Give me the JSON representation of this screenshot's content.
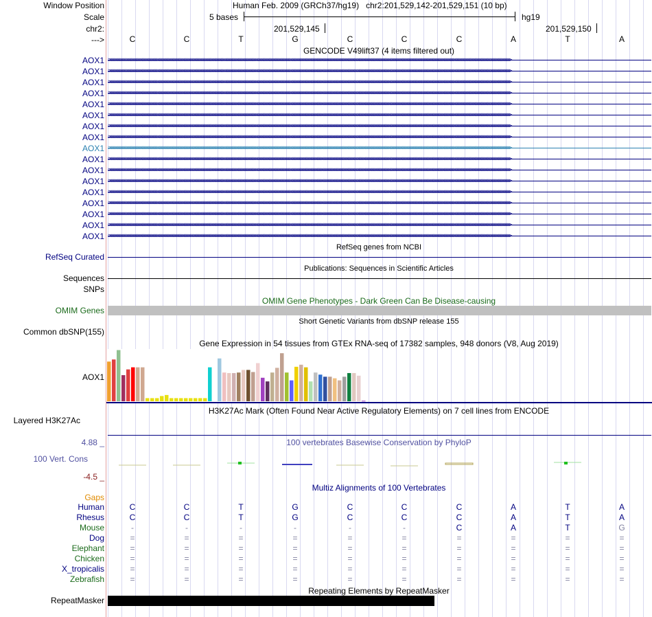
{
  "header": {
    "window_position_label": "Window Position",
    "assembly_text": "Human Feb. 2009 (GRCh37/hg19)",
    "position_text": "chr2:201,529,142-201,529,151 (10 bp)",
    "scale_label": "Scale",
    "scale_bar_text": "5 bases",
    "scale_db": "hg19",
    "chr_label": "chr2:",
    "coord_ticks": [
      "201,529,145",
      "201,529,150"
    ],
    "strand_label": "--->",
    "bases": [
      "C",
      "C",
      "T",
      "G",
      "C",
      "C",
      "C",
      "A",
      "T",
      "A"
    ]
  },
  "gencode": {
    "title": "GENCODE V49lift37 (4 items filtered out)",
    "rows": [
      "AOX1",
      "AOX1",
      "AOX1",
      "AOX1",
      "AOX1",
      "AOX1",
      "AOX1",
      "AOX1",
      "AOX1",
      "AOX1",
      "AOX1",
      "AOX1",
      "AOX1",
      "AOX1",
      "AOX1",
      "AOX1",
      "AOX1"
    ],
    "highlight_index": 8,
    "color": "#000080",
    "highlight_color": "#2a80b0"
  },
  "refseq": {
    "title": "RefSeq genes from NCBI",
    "label": "RefSeq Curated",
    "color": "#000080"
  },
  "publications": {
    "title": "Publications: Sequences in Scientific Articles",
    "sequences_label": "Sequences",
    "snps_label": "SNPs"
  },
  "omim": {
    "title": "OMIM Gene Phenotypes - Dark Green Can Be Disease-causing",
    "label": "OMIM Genes",
    "color": "#1a6a1a"
  },
  "dbsnp": {
    "title": "Short Genetic Variants from dbSNP release 155",
    "label": "Common dbSNP(155)"
  },
  "gtex": {
    "title": "Gene Expression in 54 tissues from GTEx RNA-seq of 17382 samples, 948 donors (V8, Aug 2019)",
    "label": "AOX1",
    "chart_data": {
      "type": "bar",
      "title": "Gene Expression in 54 tissues from GTEx RNA-seq of 17382 samples, 948 donors (V8, Aug 2019)",
      "ylim": [
        0,
        100
      ],
      "values": [
        76,
        80,
        98,
        50,
        61,
        65,
        65,
        65,
        6,
        6,
        6,
        10,
        12,
        6,
        6,
        6,
        6,
        6,
        6,
        6,
        6,
        65,
        4,
        82,
        55,
        54,
        54,
        55,
        60,
        60,
        56,
        73,
        45,
        38,
        55,
        64,
        92,
        55,
        40,
        66,
        70,
        65,
        38,
        55,
        51,
        47,
        47,
        44,
        40,
        47,
        54,
        54,
        49,
        1
      ],
      "colors": [
        "#f0a030",
        "#e04040",
        "#90c090",
        "#a03060",
        "#e04040",
        "#ff0000",
        "#d0a890",
        "#d0a890",
        "#e8e010",
        "#e8e010",
        "#e8e010",
        "#e8e010",
        "#e8e010",
        "#e8e010",
        "#e8e010",
        "#e8e010",
        "#e8e010",
        "#e8e010",
        "#e8e010",
        "#e8e010",
        "#e8e010",
        "#10d0d0",
        "#ffffff",
        "#a0c8e0",
        "#f0c0c0",
        "#e8c8c0",
        "#d0b0b0",
        "#a08060",
        "#e8c8c0",
        "#705030",
        "#c0a090",
        "#f0d0d0",
        "#a040c0",
        "#603060",
        "#c0b090",
        "#d0b0a0",
        "#c0a090",
        "#a0c030",
        "#6060ff",
        "#f0d000",
        "#d0b0a0",
        "#e0c000",
        "#b0e0b0",
        "#c0c0c0",
        "#3070d0",
        "#3050a0",
        "#c0a090",
        "#f0c080",
        "#d0b0a0",
        "#a0a0a0",
        "#108040",
        "#e0c8c0",
        "#e8d0d0",
        "#a040c0"
      ]
    }
  },
  "h3k27ac": {
    "title": "H3K27Ac Mark (Often Found Near Active Regulatory Elements) on 7 cell lines from ENCODE",
    "label": "Layered H3K27Ac"
  },
  "phylop": {
    "title": "100 vertebrates Basewise Conservation by PhyloP",
    "label": "100 Vert. Cons",
    "max": "4.88 _",
    "min": "-4.5 _",
    "color": "#5050a0",
    "min_color": "#8a2020"
  },
  "multiz": {
    "title": "Multiz Alignments of 100 Vertebrates",
    "gaps_label": "Gaps",
    "species": [
      {
        "name": "Human",
        "color": "#000080",
        "bases": [
          "C",
          "C",
          "T",
          "G",
          "C",
          "C",
          "C",
          "A",
          "T",
          "A"
        ]
      },
      {
        "name": "Rhesus",
        "color": "#000080",
        "bases": [
          "C",
          "C",
          "T",
          "G",
          "C",
          "C",
          "C",
          "A",
          "T",
          "A"
        ]
      },
      {
        "name": "Mouse",
        "color": "#1a6a1a",
        "bases": [
          "-",
          "-",
          "-",
          "-",
          "-",
          "-",
          "C",
          "A",
          "T",
          "G"
        ]
      },
      {
        "name": "Dog",
        "color": "#000080",
        "bases": [
          "=",
          "=",
          "=",
          "=",
          "=",
          "=",
          "=",
          "=",
          "=",
          "="
        ]
      },
      {
        "name": "Elephant",
        "color": "#1a6a1a",
        "bases": [
          "=",
          "=",
          "=",
          "=",
          "=",
          "=",
          "=",
          "=",
          "=",
          "="
        ]
      },
      {
        "name": "Chicken",
        "color": "#1a6a1a",
        "bases": [
          "=",
          "=",
          "=",
          "=",
          "=",
          "=",
          "=",
          "=",
          "=",
          "="
        ]
      },
      {
        "name": "X_tropicalis",
        "color": "#000080",
        "bases": [
          "=",
          "=",
          "=",
          "=",
          "=",
          "=",
          "=",
          "=",
          "=",
          "="
        ]
      },
      {
        "name": "Zebrafish",
        "color": "#1a6a1a",
        "bases": [
          "=",
          "=",
          "=",
          "=",
          "=",
          "=",
          "=",
          "=",
          "=",
          "="
        ]
      }
    ]
  },
  "repeatmasker": {
    "title": "Repeating Elements by RepeatMasker",
    "label": "RepeatMasker"
  }
}
